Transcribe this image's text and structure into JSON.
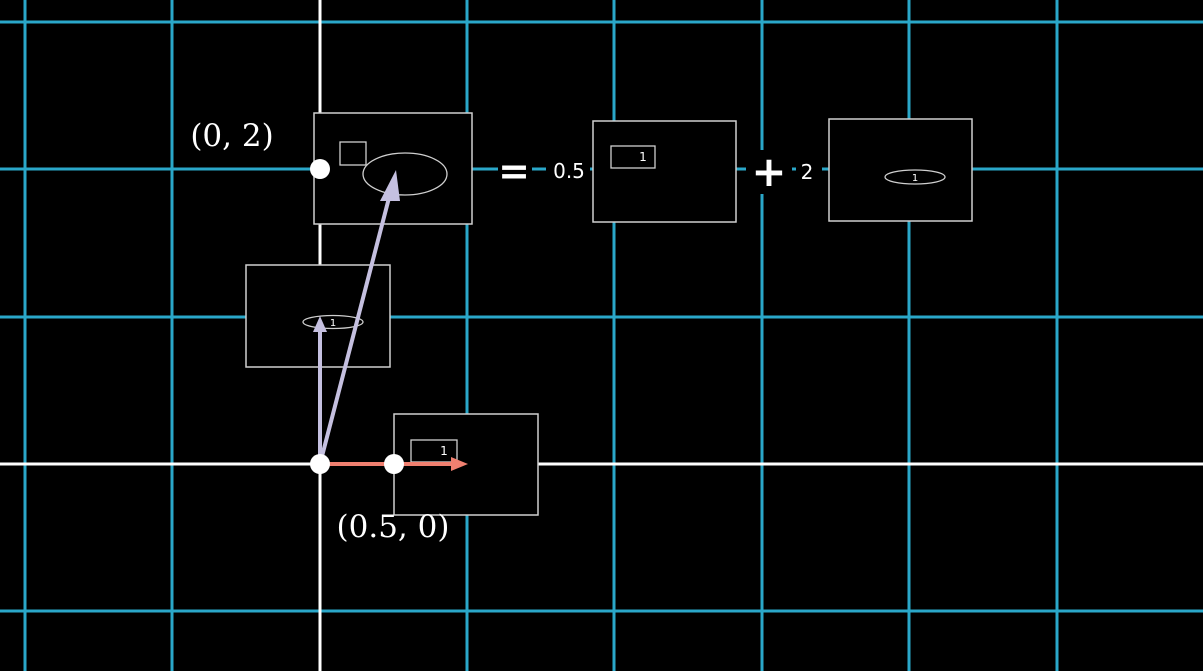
{
  "labels": {
    "point_top": "(0, 2)",
    "point_bottom": "(0.5, 0)",
    "equals": "=",
    "plus": "+",
    "coef_1": "0.5",
    "coef_2": "2"
  },
  "cards": {
    "rect_unit": "1",
    "ellipse_unit": "1",
    "eq_rect": "1",
    "eq_ellipse": "1"
  },
  "colors": {
    "background": "#000000",
    "grid": "#2aa7c9",
    "axis": "#ffffff",
    "vector_purple": "#c5c0e0",
    "vector_salmon": "#f08070",
    "card_border": "#cfcfcf"
  }
}
